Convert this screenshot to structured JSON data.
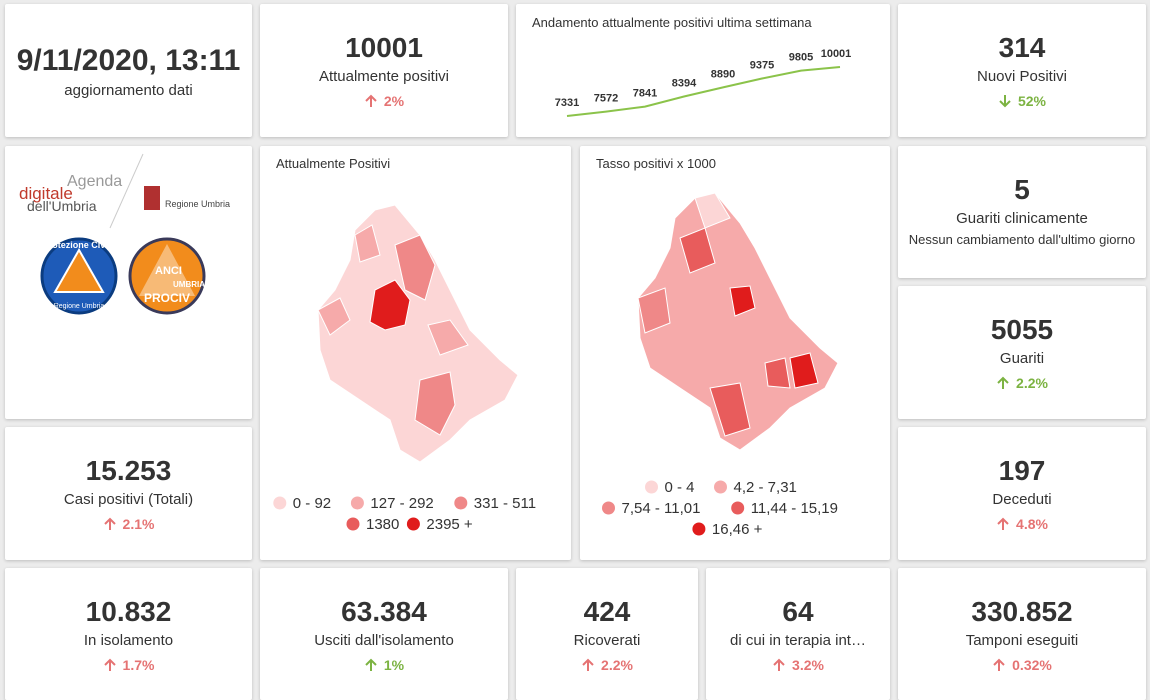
{
  "update": {
    "date": "9/11/2020, 13:11",
    "label": "aggiornamento dati"
  },
  "kpis": [
    {
      "value": "10001",
      "label": "Attualmente positivi",
      "change": "2%",
      "direction": "up",
      "color": "#e57373"
    },
    {
      "value": "314",
      "label": "Nuovi Positivi",
      "change": "52%",
      "direction": "down",
      "color": "#7cb342"
    },
    {
      "value": "5",
      "label": "Guariti clinicamente",
      "note": "Nessun cambiamento dall'ultimo giorno"
    },
    {
      "value": "5055",
      "label": "Guariti",
      "change": "2.2%",
      "direction": "up",
      "color": "#7cb342"
    },
    {
      "value": "15.253",
      "label": "Casi positivi (Totali)",
      "change": "2.1%",
      "direction": "up",
      "color": "#e57373"
    },
    {
      "value": "197",
      "label": "Deceduti",
      "change": "4.8%",
      "direction": "up",
      "color": "#e57373"
    },
    {
      "value": "10.832",
      "label": "In isolamento",
      "change": "1.7%",
      "direction": "up",
      "color": "#e57373"
    },
    {
      "value": "63.384",
      "label": "Usciti dall'isolamento",
      "change": "1%",
      "direction": "up",
      "color": "#7cb342"
    },
    {
      "value": "424",
      "label": "Ricoverati",
      "change": "2.2%",
      "direction": "up",
      "color": "#e57373"
    },
    {
      "value": "64",
      "label": "di cui in terapia int…",
      "change": "3.2%",
      "direction": "up",
      "color": "#e57373"
    },
    {
      "value": "330.852",
      "label": "Tamponi eseguiti",
      "change": "0.32%",
      "direction": "up",
      "color": "#e57373"
    }
  ],
  "trend": {
    "type": "line",
    "title": "Andamento attualmente positivi ultima settimana",
    "color": "#8bc34a",
    "values": [
      7331,
      7572,
      7841,
      8394,
      8890,
      9375,
      9805,
      10001
    ]
  },
  "maps": [
    {
      "title": "Attualmente Positivi",
      "legend": [
        {
          "label": "0 - 92",
          "color": "#fcd6d6"
        },
        {
          "label": "127 - 292",
          "color": "#f6aaaa"
        },
        {
          "label": "331 - 511",
          "color": "#ef8888"
        },
        {
          "label": "1380",
          "color": "#e85c5c"
        },
        {
          "label": "2395 +",
          "color": "#e01c1c"
        }
      ]
    },
    {
      "title": "Tasso positivi x 1000",
      "legend": [
        {
          "label": "0 - 4",
          "color": "#fcd6d6"
        },
        {
          "label": "4,2 - 7,31",
          "color": "#f6aaaa"
        },
        {
          "label": "7,54 - 11,01",
          "color": "#ef8888"
        },
        {
          "label": "11,44 - 15,19",
          "color": "#e85c5c"
        },
        {
          "label": "16,46 +",
          "color": "#e01c1c"
        }
      ]
    }
  ],
  "logos": {
    "agenda": [
      "Agenda",
      "digitale",
      "dell'Umbria"
    ],
    "region": "Regione Umbria",
    "civil": [
      "Protezione Civile",
      "Regione Umbria"
    ],
    "anci": [
      "ANCI",
      "UMBRIA",
      "PROCIV"
    ]
  }
}
